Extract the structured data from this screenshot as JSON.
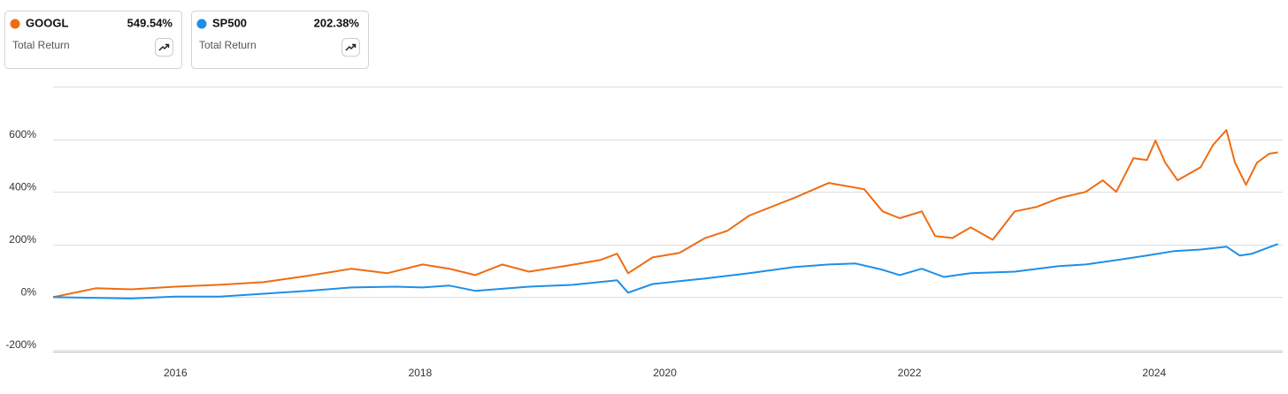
{
  "chart_data": {
    "type": "line",
    "legend_subtitle": "Total Return",
    "xlim": [
      2015,
      2025.05
    ],
    "xticks": [
      2016,
      2018,
      2020,
      2022,
      2024
    ],
    "ylim": [
      -200,
      800
    ],
    "yticks": [
      {
        "value": 600,
        "label": "600%"
      },
      {
        "value": 400,
        "label": "400%"
      },
      {
        "value": 200,
        "label": "200%"
      },
      {
        "value": 0,
        "label": "0%"
      },
      {
        "value": -200,
        "label": "-200%"
      }
    ],
    "grid": true,
    "series": [
      {
        "name": "GOOGL",
        "color": "#ee6c12",
        "total_return": {
          "value": 549.54,
          "label": "549.54%"
        },
        "x": [
          2015.0,
          2015.35,
          2015.64,
          2016.0,
          2016.36,
          2016.72,
          2017.08,
          2017.44,
          2017.73,
          2018.02,
          2018.24,
          2018.45,
          2018.67,
          2018.89,
          2019.18,
          2019.47,
          2019.61,
          2019.7,
          2019.9,
          2020.12,
          2020.33,
          2020.51,
          2020.69,
          2021.05,
          2021.34,
          2021.63,
          2021.78,
          2021.92,
          2022.1,
          2022.21,
          2022.35,
          2022.5,
          2022.68,
          2022.86,
          2023.04,
          2023.22,
          2023.44,
          2023.58,
          2023.69,
          2023.83,
          2023.94,
          2024.01,
          2024.09,
          2024.19,
          2024.38,
          2024.48,
          2024.59,
          2024.66,
          2024.75,
          2024.84,
          2024.94,
          2025.01
        ],
        "values": [
          0,
          34,
          30,
          40,
          47,
          57,
          81,
          108,
          91,
          124,
          108,
          84,
          124,
          97,
          118,
          141,
          165,
          91,
          151,
          168,
          225,
          252,
          310,
          376,
          434,
          410,
          326,
          300,
          326,
          232,
          225,
          265,
          218,
          326,
          343,
          376,
          400,
          444,
          400,
          528,
          521,
          595,
          511,
          444,
          494,
          578,
          635,
          511,
          427,
          511,
          545,
          550
        ]
      },
      {
        "name": "SP500",
        "color": "#1e8fe8",
        "total_return": {
          "value": 202.38,
          "label": "202.38%"
        },
        "x": [
          2015.0,
          2015.64,
          2016.0,
          2016.36,
          2016.72,
          2017.08,
          2017.44,
          2017.8,
          2018.02,
          2018.24,
          2018.45,
          2018.89,
          2019.25,
          2019.61,
          2019.7,
          2019.9,
          2020.33,
          2020.69,
          2021.05,
          2021.34,
          2021.56,
          2021.78,
          2021.92,
          2022.1,
          2022.28,
          2022.5,
          2022.86,
          2023.22,
          2023.44,
          2023.65,
          2023.94,
          2024.16,
          2024.38,
          2024.59,
          2024.7,
          2024.8,
          2025.01
        ],
        "values": [
          0,
          -5,
          2,
          2,
          13,
          24,
          37,
          40,
          37,
          44,
          24,
          40,
          47,
          64,
          17,
          50,
          71,
          91,
          114,
          124,
          128,
          104,
          84,
          108,
          77,
          91,
          97,
          118,
          124,
          138,
          158,
          175,
          181,
          192,
          158,
          165,
          202
        ]
      }
    ]
  }
}
